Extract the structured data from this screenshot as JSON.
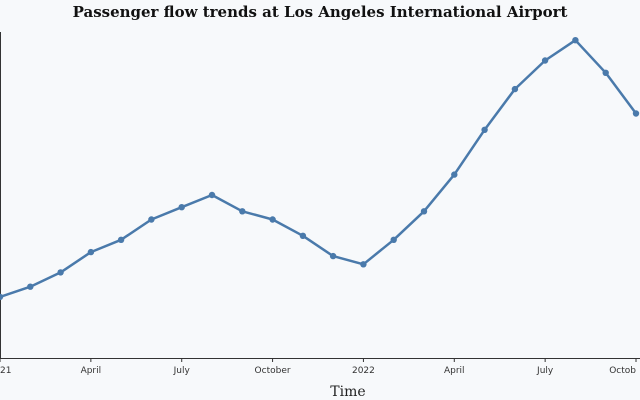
{
  "chart_data": {
    "type": "line",
    "title": "Passenger flow trends at Los Angeles International Airport",
    "xlabel": "Time",
    "ylabel": "",
    "x": [
      "2021-01",
      "2021-02",
      "2021-03",
      "2021-04",
      "2021-05",
      "2021-06",
      "2021-07",
      "2021-08",
      "2021-09",
      "2021-10",
      "2021-11",
      "2021-12",
      "2022-01",
      "2022-02",
      "2022-03",
      "2022-04",
      "2022-05",
      "2022-06",
      "2022-07",
      "2022-08",
      "2022-09",
      "2022-10"
    ],
    "x_tick_labels": [
      {
        "at": "2021-01",
        "label": "21"
      },
      {
        "at": "2021-04",
        "label": "April"
      },
      {
        "at": "2021-07",
        "label": "July"
      },
      {
        "at": "2021-10",
        "label": "October"
      },
      {
        "at": "2022-01",
        "label": "2022"
      },
      {
        "at": "2022-04",
        "label": "April"
      },
      {
        "at": "2022-07",
        "label": "July"
      },
      {
        "at": "2022-10",
        "label": "Octob"
      }
    ],
    "series": [
      {
        "values": [
          50,
          55,
          62,
          72,
          78,
          88,
          94,
          100,
          92,
          88,
          80,
          70,
          66,
          78,
          92,
          110,
          132,
          152,
          166,
          176,
          160,
          140
        ]
      }
    ],
    "ylim": [
      20,
      180
    ],
    "grid": false,
    "legend": "none",
    "colors": {
      "line": "#4a7aab",
      "marker": "#4a7aab",
      "background": "#f7f9fb"
    }
  }
}
